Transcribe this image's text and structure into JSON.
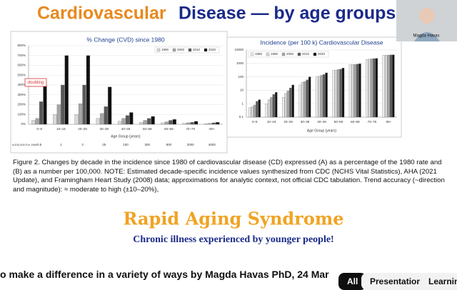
{
  "slide": {
    "title_part1": "Cardiovascular",
    "title_part2": "Disease — by age groups –",
    "caption": "Figure 2.  Changes by decade in the incidence since 1980 of cardiovascular disease (CD) expressed (A) as a percentage of the 1980 rate and (B) as a number per 100,000.  NOTE:  Estimated decade-specific incidence values synthesized from CDC (NCHS Vital Statistics), AHA (2021 Update), and Framingham Heart Study (2008) data; approximations for analytic context, not official CDC tabulation. Trend accuracy (~direction and magnitude): ≈ moderate to high (±10–20%),",
    "headline": "Rapid Aging Syndrome",
    "subheadline": "Chronic illness experienced by younger people!",
    "speaker": "Magda Havas"
  },
  "chart_data": [
    {
      "type": "bar",
      "title": "% Change (CVD) since 1980",
      "x_label": "Age Group (years)",
      "categories": [
        "0–9",
        "10–19",
        "20–29",
        "30–39",
        "40–49",
        "50–59",
        "60–69",
        "70–79",
        "80+"
      ],
      "series": [
        {
          "name": "1990",
          "color": "#d9d9d9",
          "values": [
            40,
            100,
            100,
            60,
            30,
            20,
            15,
            10,
            5
          ]
        },
        {
          "name": "2000",
          "color": "#a6a6a6",
          "values": [
            60,
            200,
            210,
            110,
            60,
            40,
            25,
            15,
            10
          ]
        },
        {
          "name": "2010",
          "color": "#595959",
          "values": [
            230,
            400,
            400,
            180,
            90,
            60,
            40,
            20,
            15
          ]
        },
        {
          "name": "2020",
          "color": "#111111",
          "values": [
            400,
            700,
            700,
            380,
            120,
            80,
            50,
            30,
            20
          ]
        }
      ],
      "ylim": [
        0,
        800
      ],
      "yticks": [
        {
          "value": 0,
          "label": "0%"
        },
        {
          "value": 100,
          "label": "100%"
        },
        {
          "value": 200,
          "label": "200%"
        },
        {
          "value": 300,
          "label": "300%"
        },
        {
          "value": 400,
          "label": "400%"
        },
        {
          "value": 500,
          "label": "500%"
        },
        {
          "value": 600,
          "label": "600%"
        },
        {
          "value": 700,
          "label": "700%"
        },
        {
          "value": 800,
          "label": "800%"
        }
      ],
      "grid": true,
      "log_scale": false,
      "legend": "top-right",
      "annotation": "doubling",
      "baseline_label": "n/100,000 For 1980",
      "baseline_values": [
        0.5,
        1,
        3,
        25,
        100,
        300,
        800,
        2000,
        4000
      ]
    },
    {
      "type": "bar",
      "title": "Incidence (per 100 k) Cardiovascular Disease",
      "x_label": "Age Group (years)",
      "categories": [
        "0–9",
        "10–19",
        "20–29",
        "30–39",
        "40–49",
        "50–59",
        "60–69",
        "70–79",
        "80+"
      ],
      "series": [
        {
          "name": "1980",
          "color": "#eeeeee",
          "values": [
            0.5,
            1,
            3,
            25,
            100,
            300,
            800,
            2000,
            4000
          ]
        },
        {
          "name": "1990",
          "color": "#d9d9d9",
          "values": [
            0.6,
            2,
            6,
            40,
            110,
            320,
            820,
            2100,
            4100
          ]
        },
        {
          "name": "2000",
          "color": "#a6a6a6",
          "values": [
            0.8,
            3,
            9,
            45,
            130,
            350,
            850,
            2200,
            4200
          ]
        },
        {
          "name": "2010",
          "color": "#595959",
          "values": [
            1.5,
            5,
            15,
            60,
            150,
            380,
            880,
            2300,
            4300
          ]
        },
        {
          "name": "2020",
          "color": "#111111",
          "values": [
            2,
            7,
            25,
            100,
            200,
            450,
            950,
            2400,
            4400
          ]
        }
      ],
      "ylim": [
        0.1,
        10000
      ],
      "yticks": [
        0.1,
        1,
        10,
        100,
        1000,
        10000
      ],
      "grid": true,
      "log_scale": true,
      "legend": "top-left"
    }
  ],
  "player": {
    "video_title": "o make a difference in a variety of ways by Magda Havas PhD, 24 Mar",
    "chips": [
      "All",
      "Presentations",
      "Learning"
    ]
  }
}
